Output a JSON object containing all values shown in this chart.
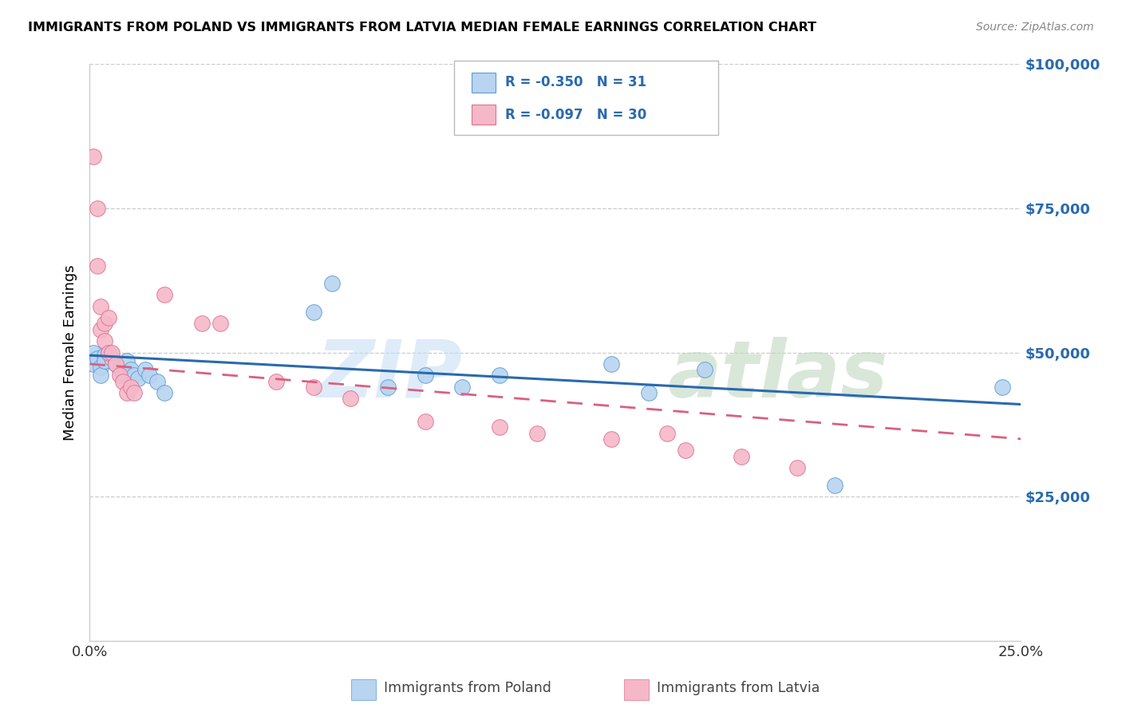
{
  "title": "IMMIGRANTS FROM POLAND VS IMMIGRANTS FROM LATVIA MEDIAN FEMALE EARNINGS CORRELATION CHART",
  "source": "Source: ZipAtlas.com",
  "ylabel": "Median Female Earnings",
  "xlim": [
    0,
    0.25
  ],
  "ylim": [
    0,
    100000
  ],
  "yticks": [
    0,
    25000,
    50000,
    75000,
    100000
  ],
  "xticks": [
    0.0,
    0.05,
    0.1,
    0.15,
    0.2,
    0.25
  ],
  "poland_fill": "#b8d4f0",
  "poland_edge": "#5b9bd5",
  "poland_line": "#2a6aad",
  "latvia_fill": "#f5b8c8",
  "latvia_edge": "#e07090",
  "latvia_line": "#d96080",
  "poland_R": -0.35,
  "poland_N": 31,
  "latvia_R": -0.097,
  "latvia_N": 30,
  "poland_x": [
    0.001,
    0.001,
    0.002,
    0.003,
    0.003,
    0.004,
    0.004,
    0.005,
    0.006,
    0.007,
    0.008,
    0.009,
    0.01,
    0.011,
    0.012,
    0.013,
    0.015,
    0.016,
    0.018,
    0.02,
    0.06,
    0.065,
    0.08,
    0.09,
    0.1,
    0.11,
    0.14,
    0.15,
    0.165,
    0.2,
    0.245
  ],
  "poland_y": [
    50000,
    48000,
    49000,
    47500,
    46000,
    49500,
    48500,
    50000,
    49000,
    48000,
    47000,
    46500,
    48500,
    47000,
    46000,
    45500,
    47000,
    46000,
    45000,
    43000,
    57000,
    62000,
    44000,
    46000,
    44000,
    46000,
    48000,
    43000,
    47000,
    27000,
    44000
  ],
  "latvia_x": [
    0.001,
    0.002,
    0.002,
    0.003,
    0.003,
    0.004,
    0.004,
    0.005,
    0.005,
    0.006,
    0.007,
    0.008,
    0.009,
    0.01,
    0.011,
    0.012,
    0.02,
    0.03,
    0.035,
    0.05,
    0.06,
    0.07,
    0.09,
    0.11,
    0.12,
    0.14,
    0.155,
    0.16,
    0.175,
    0.19
  ],
  "latvia_y": [
    84000,
    75000,
    65000,
    58000,
    54000,
    55000,
    52000,
    56000,
    50000,
    50000,
    48000,
    46000,
    45000,
    43000,
    44000,
    43000,
    60000,
    55000,
    55000,
    45000,
    44000,
    42000,
    38000,
    37000,
    36000,
    35000,
    36000,
    33000,
    32000,
    30000
  ]
}
